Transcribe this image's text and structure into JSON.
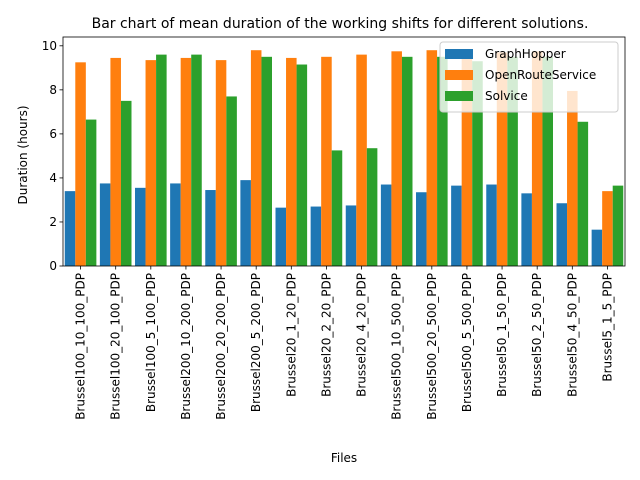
{
  "chart_data": {
    "type": "bar",
    "title": "Bar chart of mean duration of the working shifts for different solutions.",
    "xlabel": "Files",
    "ylabel": "Duration (hours)",
    "ylim": [
      0,
      10.4
    ],
    "yticks": [
      0,
      2,
      4,
      6,
      8,
      10
    ],
    "legend_position": "top-right",
    "grid": false,
    "categories": [
      "Brussel100_10_100_PDP",
      "Brussel100_20_100_PDP",
      "Brussel100_5_100_PDP",
      "Brussel200_10_200_PDP",
      "Brussel200_20_200_PDP",
      "Brussel200_5_200_PDP",
      "Brussel20_1_20_PDP",
      "Brussel20_2_20_PDP",
      "Brussel20_4_20_PDP",
      "Brussel500_10_500_PDP",
      "Brussel500_20_500_PDP",
      "Brussel500_5_500_PDP",
      "Brussel50_1_50_PDP",
      "Brussel50_2_50_PDP",
      "Brussel50_4_50_PDP",
      "Brussel5_1_5_PDP"
    ],
    "series": [
      {
        "name": "GraphHopper",
        "color": "#1f77b4",
        "values": [
          3.4,
          3.75,
          3.55,
          3.75,
          3.45,
          3.9,
          2.65,
          2.7,
          2.75,
          3.7,
          3.35,
          3.65,
          3.7,
          3.3,
          2.85,
          1.65
        ]
      },
      {
        "name": "OpenRouteService",
        "color": "#ff7f0e",
        "values": [
          9.25,
          9.45,
          9.35,
          9.45,
          9.35,
          9.8,
          9.45,
          9.5,
          9.6,
          9.75,
          9.8,
          9.8,
          9.7,
          9.75,
          7.95,
          3.4
        ]
      },
      {
        "name": "Solvice",
        "color": "#2ca02c",
        "values": [
          6.65,
          7.5,
          9.6,
          9.6,
          7.7,
          9.5,
          9.15,
          5.25,
          5.35,
          9.5,
          9.5,
          9.3,
          9.5,
          9.5,
          6.55,
          3.65
        ]
      }
    ]
  }
}
